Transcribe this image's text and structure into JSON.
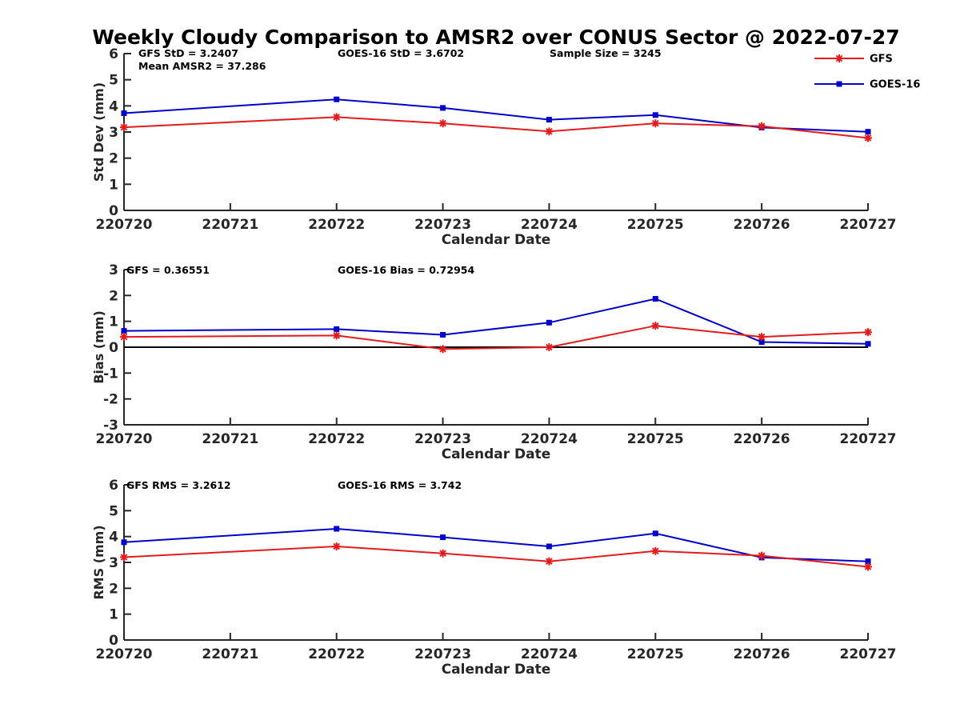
{
  "colors": {
    "GFS": "#e41a1c",
    "GOES-16": "#0000cc",
    "axis": "#262626",
    "zero": "#000000"
  },
  "chart_data": {
    "title": "Weekly Cloudy Comparison to AMSR2 over CONUS Sector @ 2022-07-27",
    "legend": {
      "placement": "top-right",
      "entries": [
        "GFS",
        "GOES-16"
      ]
    },
    "panels": [
      {
        "type": "line",
        "xlabel": "Calendar Date",
        "ylabel": "Std Dev (mm)",
        "ylim": [
          0,
          6
        ],
        "yticks": [
          "0",
          "1",
          "2",
          "3",
          "4",
          "5",
          "6"
        ],
        "xticks": [
          "220720",
          "220721",
          "220722",
          "220723",
          "220724",
          "220725",
          "220726",
          "220727"
        ],
        "zero_line": false,
        "stats": [
          "GFS StD = 3.2407",
          "GOES-16 StD = 3.6702",
          "Sample Size = 3245",
          "Mean AMSR2 = 37.286"
        ],
        "series": [
          {
            "name": "GFS",
            "x": [
              0,
              2,
              3,
              4,
              5,
              6,
              7
            ],
            "values": [
              3.18,
              3.57,
              3.33,
              3.02,
              3.33,
              3.22,
              2.77
            ]
          },
          {
            "name": "GOES-16",
            "x": [
              0,
              2,
              3,
              4,
              5,
              6,
              7
            ],
            "values": [
              3.72,
              4.25,
              3.92,
              3.47,
              3.65,
              3.17,
              3.01
            ]
          }
        ]
      },
      {
        "type": "line",
        "xlabel": "Calendar Date",
        "ylabel": "Bias (mm)",
        "ylim": [
          -3,
          3
        ],
        "yticks": [
          "-3",
          "-2",
          "-1",
          "0",
          "1",
          "2",
          "3"
        ],
        "xticks": [
          "220720",
          "220721",
          "220722",
          "220723",
          "220724",
          "220725",
          "220726",
          "220727"
        ],
        "zero_line": true,
        "stats": [
          "GFS = 0.36551",
          "GOES-16 Bias  = 0.72954"
        ],
        "series": [
          {
            "name": "GFS",
            "x": [
              0,
              2,
              3,
              4,
              5,
              6,
              7
            ],
            "values": [
              0.4,
              0.45,
              -0.07,
              0.0,
              0.83,
              0.4,
              0.58
            ]
          },
          {
            "name": "GOES-16",
            "x": [
              0,
              2,
              3,
              4,
              5,
              6,
              7
            ],
            "values": [
              0.63,
              0.7,
              0.48,
              0.95,
              1.87,
              0.2,
              0.13
            ]
          }
        ]
      },
      {
        "type": "line",
        "xlabel": "Calendar Date",
        "ylabel": "RMS (mm)",
        "ylim": [
          0,
          6
        ],
        "yticks": [
          "0",
          "1",
          "2",
          "3",
          "4",
          "5",
          "6"
        ],
        "xticks": [
          "220720",
          "220721",
          "220722",
          "220723",
          "220724",
          "220725",
          "220726",
          "220727"
        ],
        "zero_line": false,
        "stats": [
          "GFS RMS = 3.2612",
          "GOES-16 RMS = 3.742"
        ],
        "series": [
          {
            "name": "GFS",
            "x": [
              0,
              2,
              3,
              4,
              5,
              6,
              7
            ],
            "values": [
              3.2,
              3.62,
              3.35,
              3.04,
              3.44,
              3.26,
              2.83
            ]
          },
          {
            "name": "GOES-16",
            "x": [
              0,
              2,
              3,
              4,
              5,
              6,
              7
            ],
            "values": [
              3.78,
              4.3,
              3.97,
              3.62,
              4.12,
              3.19,
              3.04
            ]
          }
        ]
      }
    ]
  }
}
